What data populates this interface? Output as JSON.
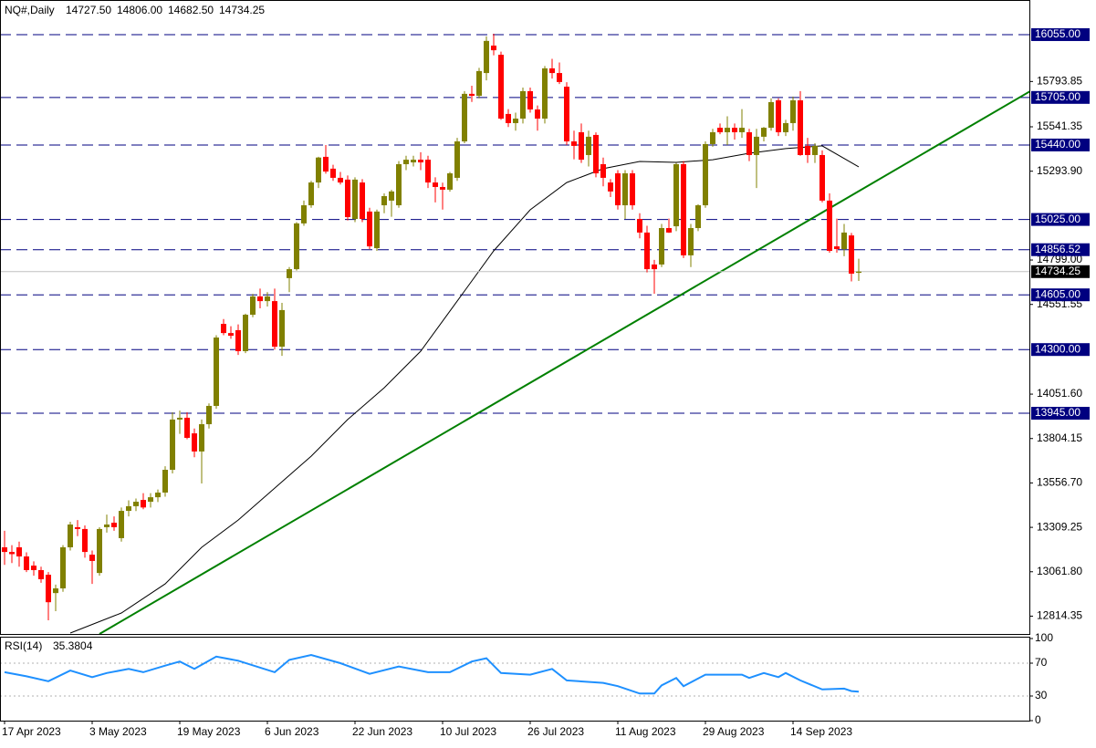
{
  "chart_data": {
    "type": "candlestick",
    "title": "NQ#,Daily",
    "header_values": [
      {
        "value": 14727.5,
        "label": "14727.50"
      },
      {
        "value": 14806,
        "label": "14806.00"
      },
      {
        "value": 14682.5,
        "label": "14682.50"
      },
      {
        "value": 14734.25,
        "label": "14734.25"
      }
    ],
    "up_color": "#808000",
    "down_color": "#ff0000",
    "categories": [
      "17 Apr 2023",
      null,
      null,
      null,
      null,
      null,
      null,
      null,
      null,
      null,
      null,
      null,
      "3 May 2023",
      null,
      null,
      null,
      null,
      null,
      null,
      null,
      null,
      null,
      null,
      null,
      "19 May 2023",
      null,
      null,
      null,
      null,
      null,
      null,
      null,
      null,
      null,
      null,
      null,
      "6 Jun 2023",
      null,
      null,
      null,
      null,
      null,
      null,
      null,
      null,
      null,
      null,
      null,
      "22 Jun 2023",
      null,
      null,
      null,
      null,
      null,
      null,
      null,
      null,
      null,
      null,
      null,
      "10 Jul 2023",
      null,
      null,
      null,
      null,
      null,
      null,
      null,
      null,
      null,
      null,
      null,
      "26 Jul 2023",
      null,
      null,
      null,
      null,
      null,
      null,
      null,
      null,
      null,
      null,
      null,
      "11 Aug 2023",
      null,
      null,
      null,
      null,
      null,
      null,
      null,
      null,
      null,
      null,
      null,
      "29 Aug 2023",
      null,
      null,
      null,
      null,
      null,
      null,
      null,
      null,
      null,
      null,
      null,
      "14 Sep 2023",
      null,
      null,
      null,
      null,
      null,
      null,
      null,
      null,
      null
    ],
    "ohlc": [
      [
        13198,
        13290,
        13100,
        13172
      ],
      [
        13172,
        13210,
        13110,
        13160
      ],
      [
        13198,
        13230,
        13090,
        13147
      ],
      [
        13147,
        13170,
        13060,
        13071
      ],
      [
        13096,
        13120,
        13040,
        13071
      ],
      [
        13071,
        13090,
        13000,
        13020
      ],
      [
        13045,
        13060,
        12791,
        12892
      ],
      [
        12943,
        12990,
        12842,
        12969
      ],
      [
        12969,
        13210,
        12950,
        13198
      ],
      [
        13198,
        13340,
        13180,
        13325
      ],
      [
        13310,
        13350,
        13260,
        13300
      ],
      [
        13300,
        13320,
        13140,
        13172
      ],
      [
        13157,
        13180,
        12994,
        13122
      ],
      [
        13055,
        13310,
        13040,
        13300
      ],
      [
        13310,
        13380,
        13280,
        13325
      ],
      [
        13335,
        13370,
        13290,
        13310
      ],
      [
        13249,
        13420,
        13230,
        13401
      ],
      [
        13401,
        13460,
        13370,
        13427
      ],
      [
        13427,
        13470,
        13400,
        13452
      ],
      [
        13462,
        13500,
        13410,
        13420
      ],
      [
        13452,
        13500,
        13420,
        13477
      ],
      [
        13477,
        13520,
        13450,
        13503
      ],
      [
        13503,
        13650,
        13480,
        13630
      ],
      [
        13630,
        13950,
        13610,
        13910
      ],
      [
        13910,
        13960,
        13830,
        13920
      ],
      [
        13920,
        13950,
        13800,
        13808
      ],
      [
        13833,
        13860,
        13700,
        13732
      ],
      [
        13732,
        13910,
        13554,
        13884
      ],
      [
        13884,
        14000,
        13860,
        13986
      ],
      [
        13986,
        14380,
        13970,
        14367
      ],
      [
        14443,
        14470,
        14380,
        14392
      ],
      [
        14392,
        14430,
        14360,
        14377
      ],
      [
        14408,
        14440,
        14270,
        14291
      ],
      [
        14291,
        14500,
        14280,
        14494
      ],
      [
        14494,
        14610,
        14480,
        14596
      ],
      [
        14596,
        14640,
        14530,
        14570
      ],
      [
        14570,
        14620,
        14540,
        14596
      ],
      [
        14570,
        14640,
        14300,
        14316
      ],
      [
        14316,
        14560,
        14265,
        14520
      ],
      [
        14698,
        14760,
        14620,
        14748
      ],
      [
        14748,
        15010,
        14740,
        15003
      ],
      [
        15003,
        15130,
        14990,
        15104
      ],
      [
        15104,
        15240,
        15090,
        15231
      ],
      [
        15231,
        15374,
        15200,
        15370
      ],
      [
        15374,
        15440,
        15280,
        15292
      ],
      [
        15308,
        15330,
        15240,
        15257
      ],
      [
        15257,
        15290,
        15220,
        15231
      ],
      [
        15247,
        15270,
        15020,
        15038
      ],
      [
        15028,
        15260,
        15010,
        15247
      ],
      [
        15231,
        15250,
        15010,
        15028
      ],
      [
        15069,
        15090,
        14860,
        14875
      ],
      [
        14865,
        15080,
        14850,
        15069
      ],
      [
        15104,
        15170,
        15060,
        15155
      ],
      [
        15130,
        15190,
        15040,
        15181
      ],
      [
        15104,
        15350,
        15090,
        15333
      ],
      [
        15333,
        15380,
        15300,
        15358
      ],
      [
        15343,
        15380,
        15320,
        15358
      ],
      [
        15358,
        15400,
        15300,
        15343
      ],
      [
        15358,
        15380,
        15200,
        15231
      ],
      [
        15231,
        15260,
        15120,
        15206
      ],
      [
        15206,
        15230,
        15080,
        15191
      ],
      [
        15191,
        15290,
        15180,
        15282
      ],
      [
        15257,
        15480,
        15240,
        15460
      ],
      [
        15460,
        15740,
        15450,
        15725
      ],
      [
        15725,
        15770,
        15680,
        15714
      ],
      [
        15714,
        15870,
        15700,
        15852
      ],
      [
        15841,
        16045,
        15800,
        16020
      ],
      [
        15994,
        16060,
        15940,
        15968
      ],
      [
        15943,
        15960,
        15580,
        15587
      ],
      [
        15613,
        15640,
        15540,
        15562
      ],
      [
        15562,
        15620,
        15520,
        15587
      ],
      [
        15587,
        15760,
        15560,
        15740
      ],
      [
        15740,
        15760,
        15620,
        15638
      ],
      [
        15638,
        15660,
        15520,
        15587
      ],
      [
        15587,
        15880,
        15560,
        15867
      ],
      [
        15867,
        15920,
        15810,
        15841
      ],
      [
        15841,
        15900,
        15780,
        15791
      ],
      [
        15765,
        15790,
        15440,
        15460
      ],
      [
        15460,
        15520,
        15360,
        15435
      ],
      [
        15511,
        15560,
        15340,
        15358
      ],
      [
        15384,
        15520,
        15320,
        15486
      ],
      [
        15496,
        15510,
        15260,
        15282
      ],
      [
        15333,
        15370,
        15210,
        15257
      ],
      [
        15231,
        15250,
        15150,
        15181
      ],
      [
        15282,
        15300,
        15080,
        15104
      ],
      [
        15104,
        15300,
        15028,
        15282
      ],
      [
        15282,
        15300,
        15080,
        15104
      ],
      [
        15028,
        15060,
        14920,
        14952
      ],
      [
        14952,
        14990,
        14730,
        14748
      ],
      [
        14774,
        14800,
        14611,
        14748
      ],
      [
        14774,
        15000,
        14760,
        14977
      ],
      [
        14977,
        15030,
        14950,
        14952
      ],
      [
        14987,
        15340,
        14960,
        15333
      ],
      [
        15333,
        15350,
        14810,
        14825
      ],
      [
        14825,
        15000,
        14760,
        14977
      ],
      [
        14977,
        15110,
        14960,
        15104
      ],
      [
        15104,
        15460,
        15090,
        15445
      ],
      [
        15445,
        15530,
        15430,
        15511
      ],
      [
        15536,
        15560,
        15500,
        15511
      ],
      [
        15511,
        15600,
        15440,
        15536
      ],
      [
        15536,
        15560,
        15470,
        15511
      ],
      [
        15511,
        15640,
        15480,
        15536
      ],
      [
        15511,
        15530,
        15350,
        15384
      ],
      [
        15384,
        15530,
        15200,
        15486
      ],
      [
        15486,
        15540,
        15460,
        15536
      ],
      [
        15536,
        15700,
        15520,
        15679
      ],
      [
        15689,
        15700,
        15490,
        15511
      ],
      [
        15511,
        15580,
        15490,
        15562
      ],
      [
        15562,
        15710,
        15520,
        15689
      ],
      [
        15689,
        15740,
        15380,
        15384
      ],
      [
        15435,
        15480,
        15340,
        15384
      ],
      [
        15384,
        15450,
        15340,
        15435
      ],
      [
        15384,
        15410,
        15120,
        15130
      ],
      [
        15130,
        15170,
        14840,
        14850
      ],
      [
        14875,
        15030,
        14840,
        14860
      ],
      [
        14860,
        15000,
        14820,
        14952
      ],
      [
        14936,
        14950,
        14680,
        14723
      ],
      [
        14727.5,
        14806,
        14682.5,
        14734.25
      ]
    ],
    "ylim": [
      12715,
      16248
    ],
    "yticks": [
      {
        "value": 15793.85,
        "label": "15793.85"
      },
      {
        "value": 15541.35,
        "label": "15541.35"
      },
      {
        "value": 15293.9,
        "label": "15293.90"
      },
      {
        "value": 14799,
        "label": "14799.00"
      },
      {
        "value": 14551.55,
        "label": "14551.55"
      },
      {
        "value": 14051.6,
        "label": "14051.60"
      },
      {
        "value": 13804.15,
        "label": "13804.15"
      },
      {
        "value": 13556.7,
        "label": "13556.70"
      },
      {
        "value": 13309.25,
        "label": "13309.25"
      },
      {
        "value": 13061.8,
        "label": "13061.80"
      },
      {
        "value": 12814.35,
        "label": "12814.35"
      }
    ],
    "levels": {
      "color": "#000080",
      "values": [
        {
          "value": 16055,
          "label": "16055.00"
        },
        {
          "value": 15705,
          "label": "15705.00"
        },
        {
          "value": 15440,
          "label": "15440.00"
        },
        {
          "value": 15025,
          "label": "15025.00"
        },
        {
          "value": 14856.52,
          "label": "14856.52"
        },
        {
          "value": 14605,
          "label": "14605.00"
        },
        {
          "value": 14300,
          "label": "14300.00"
        },
        {
          "value": 13945,
          "label": "13945.00"
        }
      ]
    },
    "ma": {
      "color": "#000000",
      "x": [
        9,
        16,
        22,
        27,
        32,
        37,
        42,
        47,
        52,
        57,
        62,
        67,
        72,
        77,
        82,
        87,
        92,
        97,
        102,
        107,
        112,
        117
      ],
      "values": [
        12720,
        12832,
        12994,
        13198,
        13350,
        13528,
        13706,
        13910,
        14087,
        14291,
        14570,
        14850,
        15079,
        15231,
        15308,
        15348,
        15343,
        15358,
        15394,
        15420,
        15435,
        15318
      ]
    },
    "trendline": {
      "color": "#008000",
      "x": [
        13,
        140.5
      ],
      "values": [
        12715,
        15740
      ]
    },
    "rsi": {
      "name": "RSI(14)",
      "color": "#1e90ff",
      "ylim": [
        0,
        100
      ],
      "yticks": [
        100,
        70,
        30,
        0
      ],
      "levels": [
        70,
        30
      ],
      "x": [
        0,
        3,
        6,
        9,
        12,
        14,
        17,
        19,
        22,
        24,
        26,
        29,
        32,
        37,
        39,
        42,
        46,
        50,
        54,
        58,
        61,
        64,
        66,
        68,
        72,
        75,
        77,
        82,
        84,
        87,
        89,
        90,
        92,
        93,
        96,
        101,
        102,
        104,
        106,
        107,
        109,
        112,
        115,
        116,
        117
      ],
      "values": [
        59,
        54,
        48,
        61,
        53,
        58,
        63,
        59,
        67,
        72,
        63,
        78,
        73,
        59,
        74,
        80,
        70,
        57,
        66,
        59,
        59,
        72,
        76,
        58,
        56,
        63,
        49,
        46,
        42,
        33,
        33,
        43,
        52,
        42,
        56,
        56,
        52,
        58,
        53,
        58,
        49,
        38,
        39,
        36,
        35.3804
      ]
    }
  }
}
